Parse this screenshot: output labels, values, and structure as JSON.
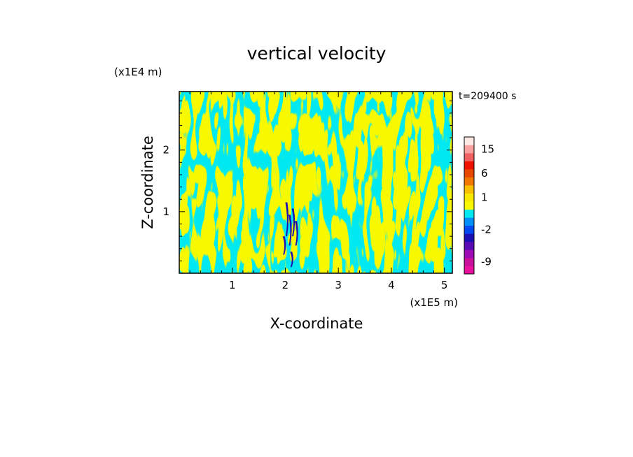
{
  "chart_data": {
    "type": "heatmap",
    "title": "vertical velocity",
    "xlabel": "X-coordinate",
    "ylabel": "Z-coordinate",
    "x_unit": "(x1E5 m)",
    "y_unit": "(x1E4 m)",
    "time_label": "t=209400 s",
    "xlim": [
      0,
      5.15
    ],
    "ylim": [
      0,
      2.95
    ],
    "x_ticks": [
      1,
      2,
      3,
      4,
      5
    ],
    "y_ticks": [
      1,
      2
    ],
    "colorbar": {
      "labels": [
        "15",
        "6",
        "1",
        "-2",
        "-9"
      ],
      "label_values": [
        15,
        6,
        1,
        -2,
        -9
      ],
      "levels": [
        {
          "value": -12,
          "color": "#e8109c"
        },
        {
          "value": -9,
          "color": "#c8109c"
        },
        {
          "value": -6,
          "color": "#9c0cb4"
        },
        {
          "value": -4,
          "color": "#5a0cb4"
        },
        {
          "value": -3,
          "color": "#1c10b4"
        },
        {
          "value": -2,
          "color": "#0048f0"
        },
        {
          "value": -1,
          "color": "#0090f8"
        },
        {
          "value": 0,
          "color": "#00e8f0"
        },
        {
          "value": 0.5,
          "color": "#f8f800"
        },
        {
          "value": 1,
          "color": "#f8e800"
        },
        {
          "value": 2,
          "color": "#f8c000"
        },
        {
          "value": 4,
          "color": "#f07800"
        },
        {
          "value": 6,
          "color": "#e84800"
        },
        {
          "value": 9,
          "color": "#f01000"
        },
        {
          "value": 12,
          "color": "#f06060"
        },
        {
          "value": 15,
          "color": "#f8a0a0"
        },
        {
          "value": 20,
          "color": "#fce8e4"
        }
      ]
    },
    "field_colors": {
      "positive": "#f8f800",
      "negative": "#00e8f0",
      "strong_negative": "#1c10b4"
    }
  }
}
